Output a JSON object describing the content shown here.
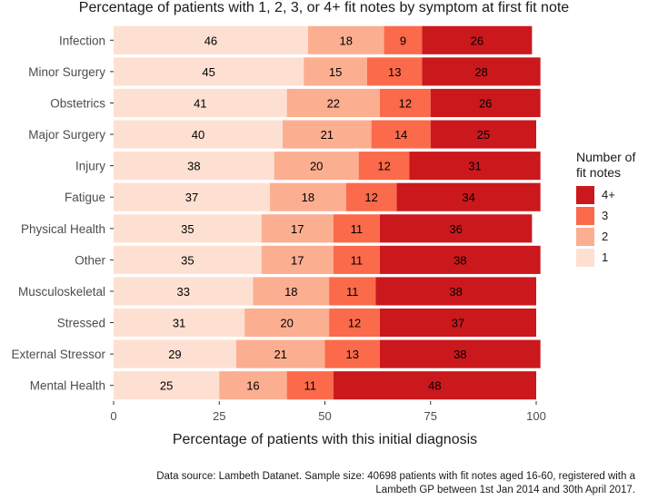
{
  "chart_data": {
    "type": "bar",
    "orientation": "horizontal",
    "stacked": true,
    "title": "Percentage of patients with 1, 2, 3, or 4+ fit notes by symptom at first fit note",
    "xlabel": "Percentage of patients with this initial diagnosis",
    "ylabel": "",
    "xlim": [
      0,
      100
    ],
    "xticks": [
      "0",
      "25",
      "50",
      "75",
      "100"
    ],
    "categories": [
      "Infection",
      "Minor Surgery",
      "Obstetrics",
      "Major Surgery",
      "Injury",
      "Fatigue",
      "Physical Health",
      "Other",
      "Musculoskeletal",
      "Stressed",
      "External Stressor",
      "Mental Health"
    ],
    "series": [
      {
        "name": "1",
        "color": "#FEE0D2",
        "values": [
          46,
          45,
          41,
          40,
          38,
          37,
          35,
          35,
          33,
          31,
          29,
          25
        ]
      },
      {
        "name": "2",
        "color": "#FCAE91",
        "values": [
          18,
          15,
          22,
          21,
          20,
          18,
          17,
          17,
          18,
          20,
          21,
          16
        ]
      },
      {
        "name": "3",
        "color": "#FB6A4A",
        "values": [
          9,
          13,
          12,
          14,
          12,
          12,
          11,
          11,
          11,
          12,
          13,
          11
        ]
      },
      {
        "name": "4+",
        "color": "#CB181D",
        "values": [
          26,
          28,
          26,
          25,
          31,
          34,
          36,
          38,
          38,
          37,
          38,
          48
        ]
      }
    ],
    "legend": {
      "title_lines": [
        "Number of",
        "fit notes"
      ],
      "position": "right",
      "order": [
        "4+",
        "3",
        "2",
        "1"
      ]
    }
  },
  "caption": {
    "line1": "Data source: Lambeth Datanet. Sample size: 40698 patients with fit notes aged 16-60, registered with a",
    "line2": "Lambeth GP between 1st Jan 2014 and 30th April 2017."
  }
}
